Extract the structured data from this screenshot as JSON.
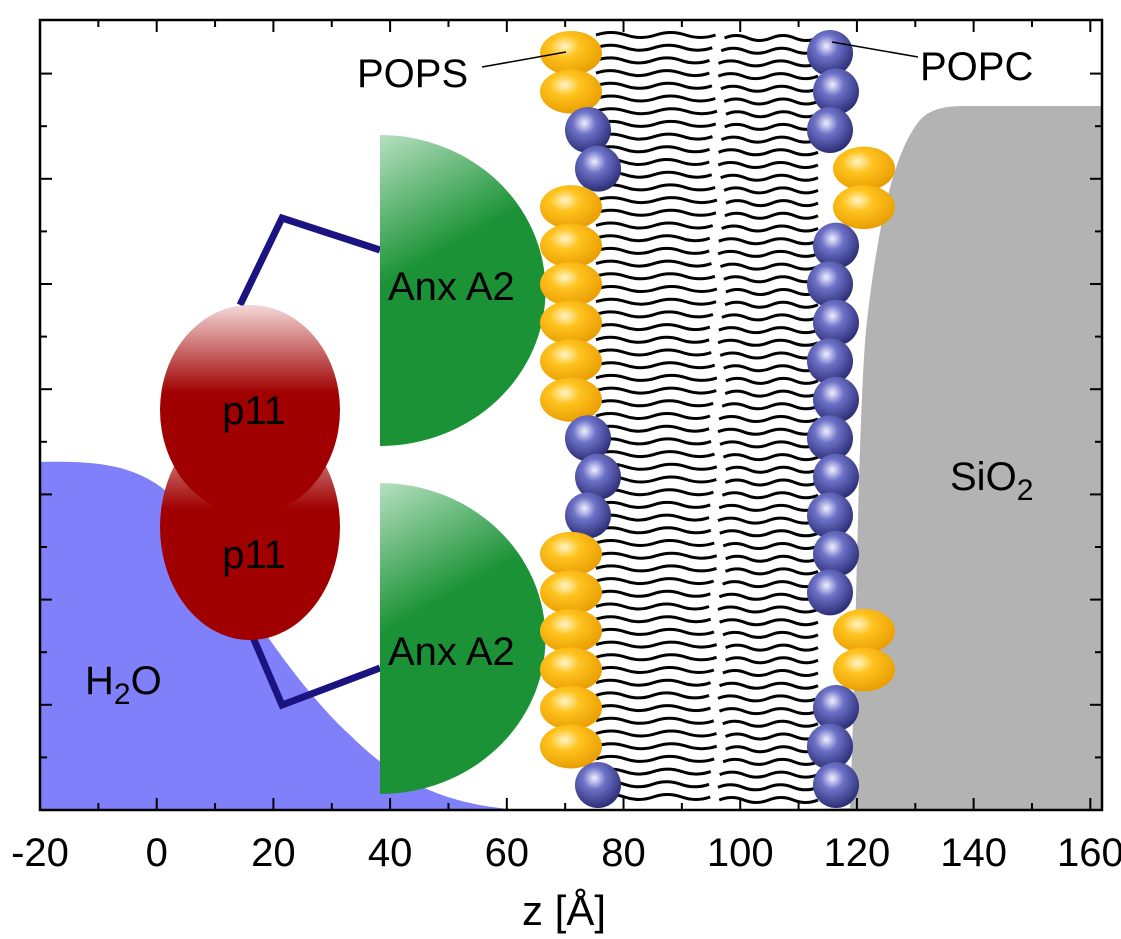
{
  "axis": {
    "xlabel": "z [Å]",
    "xlim": [
      -20,
      162
    ],
    "ticks": [
      "-20",
      "0",
      "20",
      "40",
      "60",
      "80",
      "100",
      "120",
      "140",
      "160"
    ]
  },
  "labels": {
    "water_main": "H",
    "water_sub": "2",
    "water_end": "O",
    "substrate_main": "SiO",
    "substrate_sub": "2",
    "pops": "POPS",
    "popc": "POPC",
    "p11_top": "p11",
    "p11_bottom": "p11",
    "anx_top": "Anx A2",
    "anx_bottom": "Anx A2"
  },
  "colors": {
    "water": "#8080fb",
    "substrate": "#b3b3b3",
    "p11": "#a00000",
    "annexin": "#1a9235",
    "linker": "#1b1480",
    "pops_head": "#f7b000",
    "popc_head": "#3c3f96"
  },
  "membrane": {
    "outer_leaflet": [
      "PS",
      "PS",
      "PC",
      "PC",
      "PS",
      "PS",
      "PS",
      "PS",
      "PS",
      "PS",
      "PC",
      "PC",
      "PC",
      "PS",
      "PS",
      "PS",
      "PS",
      "PS",
      "PS",
      "PC"
    ],
    "inner_leaflet": [
      "PC",
      "PC",
      "PC",
      "PS",
      "PS",
      "PC",
      "PC",
      "PC",
      "PC",
      "PC",
      "PC",
      "PC",
      "PC",
      "PC",
      "PC",
      "PS",
      "PS",
      "PC",
      "PC",
      "PC"
    ]
  }
}
